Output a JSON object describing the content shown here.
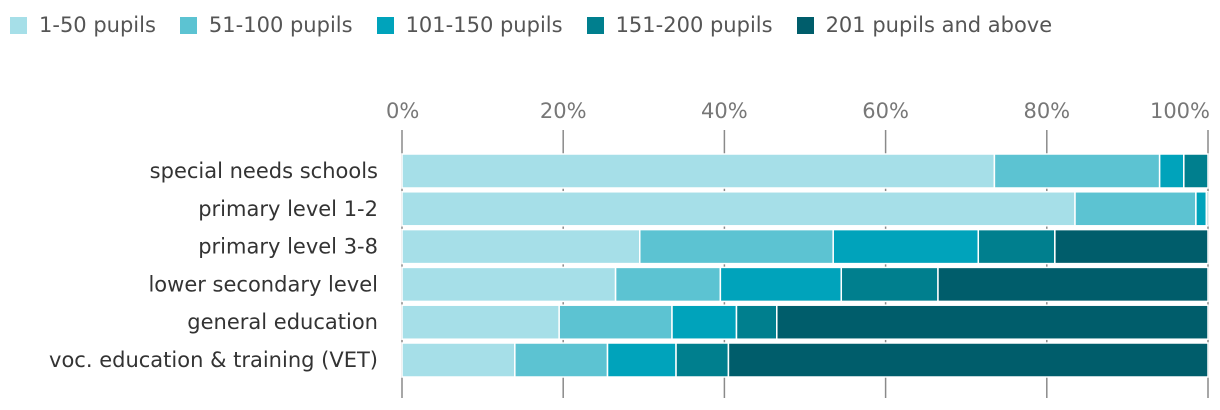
{
  "chart_data": {
    "type": "bar",
    "orientation": "horizontal",
    "stacked": "percent",
    "title": "",
    "xlabel": "",
    "ylabel": "",
    "xlim": [
      0,
      100
    ],
    "x_ticks": [
      "0%",
      "20%",
      "40%",
      "60%",
      "80%",
      "100%"
    ],
    "grid": true,
    "legend_position": "top-left",
    "categories": [
      "special needs schools",
      "primary level 1-2",
      "primary level 3-8",
      "lower secondary level",
      "general education",
      "voc. education & training (VET)"
    ],
    "series": [
      {
        "name": "1-50 pupils",
        "color": "#a6dfe8",
        "values": [
          73.5,
          83.5,
          29.5,
          26.5,
          19.5,
          14.0
        ]
      },
      {
        "name": "51-100 pupils",
        "color": "#5cc3d2",
        "values": [
          20.5,
          15.0,
          24.0,
          13.0,
          14.0,
          11.5
        ]
      },
      {
        "name": "101-150 pupils",
        "color": "#00a3bb",
        "values": [
          3.0,
          1.3,
          18.0,
          15.0,
          8.0,
          8.5
        ]
      },
      {
        "name": "151-200 pupils",
        "color": "#007f8e",
        "values": [
          3.0,
          0.2,
          9.5,
          12.0,
          5.0,
          6.5
        ]
      },
      {
        "name": "201 pupils and above",
        "color": "#005d6b",
        "values": [
          0.0,
          0.0,
          19.0,
          33.5,
          53.5,
          59.5
        ]
      }
    ]
  }
}
